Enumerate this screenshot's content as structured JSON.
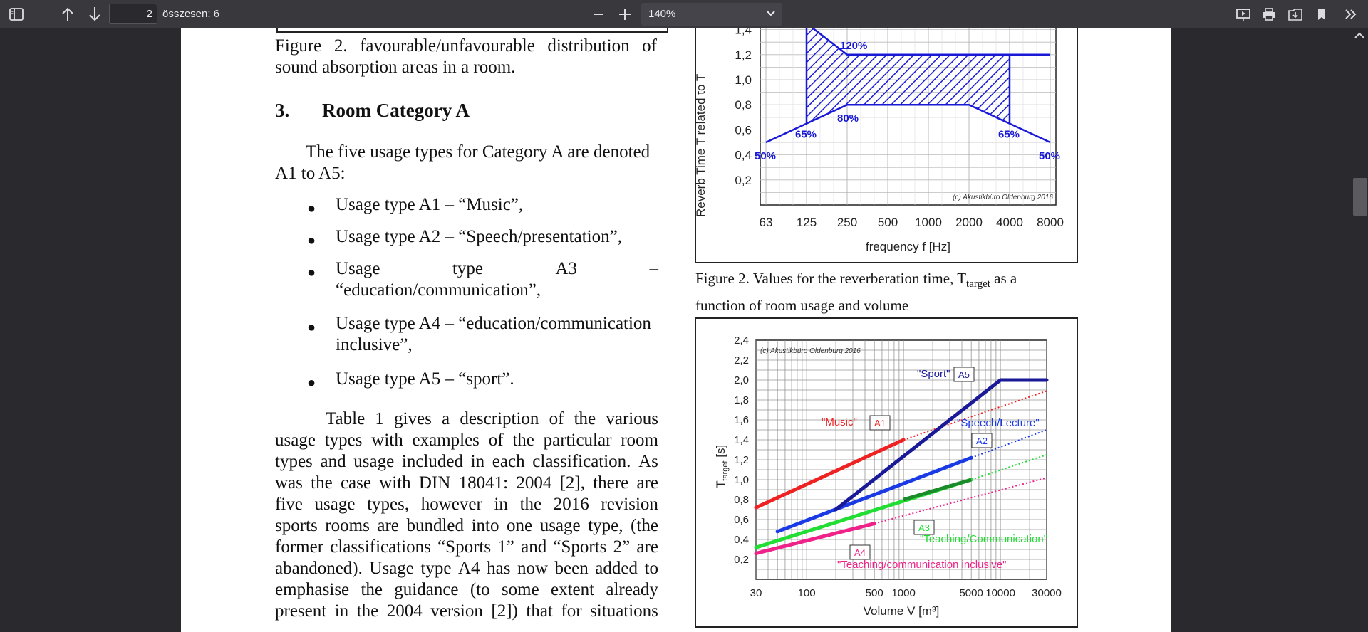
{
  "toolbar": {
    "page_number": "2",
    "page_total": "összesen: 6",
    "zoom": "140%"
  },
  "left_column": {
    "fig_caption_line1": "Figure 2. favourable/unfavourable distribution of",
    "fig_caption_line2": "sound absorption areas in a room.",
    "section_number": "3.",
    "section_title": "Room Category A",
    "intro_line1": "The five usage types for Category A are denoted",
    "intro_line2": "A1 to A5:",
    "bullets": [
      "Usage type A1 – “Music”,",
      "Usage type A2 – “Speech/presentation”,",
      "“education/communication”,",
      "Usage type A4 – “education/communication",
      "inclusive”,",
      "Usage type A5 – “sport”."
    ],
    "bullet3_words": [
      "Usage",
      "type",
      "A3",
      "–"
    ],
    "para_lines": [
      "Table 1 gives a description of the various",
      "usage types with examples of the particular room",
      "types and usage included in each classification. As",
      "was the case with DIN 18041: 2004 [2], there are",
      "five usage types, however in the 2016 revision",
      "sports rooms are bundled into one usage type, (the",
      "former classifications “Sports 1” and “Sports 2” are",
      "abandoned).  Usage type A4 has now been added to",
      "emphasise the guidance (to some extent already",
      "present in the 2004 version [2]) that for situations"
    ]
  },
  "right_column": {
    "caption1_a": "Figure 2. Values for the reverberation time, T",
    "caption1_sub": "target",
    "caption1_b": " as a",
    "caption1_line2": "function of room usage and volume"
  },
  "chart_data": [
    {
      "type": "area",
      "ylabel": "Reverb Time T related to T",
      "xlabel": "frequency f [Hz]",
      "categories": [
        "63",
        "125",
        "250",
        "500",
        "1000",
        "2000",
        "4000",
        "8000"
      ],
      "yticks": [
        "0,2",
        "0,4",
        "0,6",
        "0,8",
        "1,0",
        "1,2",
        "1,4"
      ],
      "ylim": [
        0,
        1.5
      ],
      "grid": true,
      "series": [
        {
          "values": [
            null,
            1.45,
            1.2,
            1.2,
            1.2,
            1.2,
            1.2,
            1.2
          ]
        },
        {
          "values": [
            0.5,
            0.65,
            0.8,
            0.8,
            0.8,
            0.8,
            0.65,
            0.5
          ]
        }
      ],
      "annotations": [
        "120%",
        "80%",
        "65%",
        "65%",
        "50%",
        "50%"
      ],
      "credit": "(c) Akustikbüro Oldenburg 2016"
    },
    {
      "type": "line",
      "xlabel": "Volume V [m³]",
      "ylabel": "T",
      "ylabel_sub": "target",
      "ylabel_unit": " [s]",
      "xscale": "log",
      "xticks": [
        "30",
        "100",
        "500",
        "1000",
        "5000",
        "10000",
        "30000"
      ],
      "yticks": [
        "0,2",
        "0,4",
        "0,6",
        "0,8",
        "1,0",
        "1,2",
        "1,4",
        "1,6",
        "1,8",
        "2,0",
        "2,2",
        "2,4"
      ],
      "ylim": [
        0,
        2.4
      ],
      "xlim": [
        30,
        30000
      ],
      "grid": true,
      "series": [
        {
          "name": "A1",
          "label": "\"Music\"",
          "color": "#ee2222",
          "x": [
            30,
            1000
          ],
          "y": [
            0.72,
            1.4
          ]
        },
        {
          "name": "A2",
          "label": "\"Speech/Lecture\"",
          "color": "#1a3ae6",
          "x": [
            50,
            5000
          ],
          "y": [
            0.48,
            1.22
          ]
        },
        {
          "name": "A3",
          "label": "\"Teaching/Communication\"",
          "color": "#22dd33",
          "x": [
            30,
            5000
          ],
          "y": [
            0.32,
            1.0
          ]
        },
        {
          "name": "A4",
          "label": "\"Teaching/communication inclusive\"",
          "color": "#ee2288",
          "x": [
            30,
            500
          ],
          "y": [
            0.26,
            0.56
          ]
        },
        {
          "name": "A5",
          "label": "\"Sport\"",
          "color": "#1a1a99",
          "x": [
            200,
            10000,
            30000
          ],
          "y": [
            0.7,
            2.0,
            2.0
          ]
        }
      ],
      "credit": "(c) Akustikbüro Oldenburg 2016"
    }
  ]
}
